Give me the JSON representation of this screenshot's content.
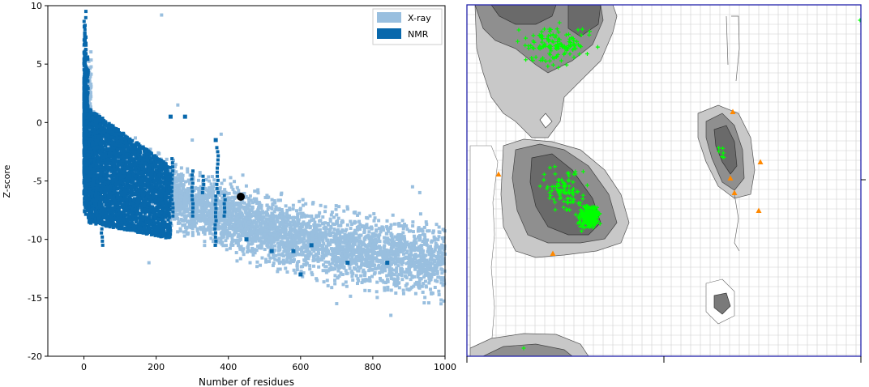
{
  "chart_data": [
    {
      "type": "scatter",
      "title": "",
      "xlabel": "Number of residues",
      "ylabel": "Z-score",
      "xlim": [
        -100,
        1000
      ],
      "ylim": [
        -20,
        10
      ],
      "x_ticks": [
        0,
        200,
        400,
        600,
        800,
        1000
      ],
      "y_ticks": [
        10,
        5,
        0,
        -5,
        -10,
        -15,
        -20
      ],
      "legend_position": "top-right",
      "grid": false,
      "series": [
        {
          "name": "X-ray",
          "color": "#99bfdf",
          "description_points": [
            [
              5,
              9.5
            ],
            [
              8,
              7
            ],
            [
              10,
              4
            ],
            [
              15,
              2
            ],
            [
              20,
              1
            ],
            [
              40,
              0.5
            ],
            [
              60,
              -1
            ],
            [
              100,
              -2
            ],
            [
              150,
              -1.5
            ],
            [
              200,
              -2
            ],
            [
              250,
              -3
            ],
            [
              300,
              -3.5
            ],
            [
              350,
              -4
            ],
            [
              400,
              -5
            ],
            [
              450,
              -6
            ],
            [
              500,
              -7
            ],
            [
              550,
              -8
            ],
            [
              600,
              -9
            ],
            [
              650,
              -9.5
            ],
            [
              700,
              -10
            ],
            [
              750,
              -10.5
            ],
            [
              800,
              -11
            ],
            [
              850,
              -11.5
            ],
            [
              900,
              -12
            ],
            [
              950,
              -12.5
            ],
            [
              1000,
              -12
            ],
            [
              150,
              -8
            ],
            [
              200,
              -10
            ],
            [
              250,
              -11
            ],
            [
              300,
              -12
            ],
            [
              350,
              -12
            ],
            [
              400,
              -13
            ],
            [
              450,
              -13.5
            ],
            [
              500,
              -13
            ],
            [
              550,
              -14
            ],
            [
              600,
              -14.5
            ],
            [
              700,
              -15
            ],
            [
              800,
              -15.5
            ],
            [
              850,
              -16.5
            ],
            [
              950,
              -14.5
            ],
            [
              1000,
              -14.5
            ],
            [
              910,
              -5.5
            ],
            [
              440,
              -4.5
            ],
            [
              215,
              9.2
            ],
            [
              300,
              -2
            ],
            [
              380,
              -1
            ],
            [
              260,
              1.5
            ]
          ]
        },
        {
          "name": "NMR",
          "color": "#0868ac",
          "description_points": [
            [
              2,
              9.8
            ],
            [
              3,
              8
            ],
            [
              4,
              6
            ],
            [
              5,
              4
            ],
            [
              6,
              2
            ],
            [
              8,
              1
            ],
            [
              10,
              0
            ],
            [
              15,
              -1
            ],
            [
              20,
              -2
            ],
            [
              40,
              -3
            ],
            [
              60,
              -4
            ],
            [
              80,
              -5
            ],
            [
              100,
              -6
            ],
            [
              120,
              -7
            ],
            [
              150,
              -7
            ],
            [
              180,
              -6
            ],
            [
              200,
              -5
            ],
            [
              230,
              -6
            ],
            [
              260,
              -5
            ],
            [
              300,
              -5
            ],
            [
              330,
              -5.5
            ],
            [
              360,
              -6.5
            ],
            [
              370,
              -9
            ],
            [
              380,
              -8
            ],
            [
              50,
              -10
            ],
            [
              80,
              -9
            ],
            [
              20,
              -9
            ],
            [
              40,
              2
            ],
            [
              90,
              0
            ],
            [
              140,
              -1
            ],
            [
              190,
              -2
            ],
            [
              250,
              0.5
            ],
            [
              310,
              -2
            ],
            [
              450,
              -10
            ],
            [
              520,
              -11
            ],
            [
              580,
              -11
            ],
            [
              630,
              -10.5
            ],
            [
              730,
              -12
            ],
            [
              840,
              -12
            ],
            [
              600,
              -13
            ]
          ]
        },
        {
          "name": "",
          "color": "#000000",
          "points": [
            [
              435,
              -6.3
            ]
          ]
        }
      ]
    },
    {
      "type": "scatter",
      "title": "",
      "xlabel": "",
      "ylabel": "",
      "grid": true,
      "background": "Ramachandran regions",
      "series": [
        {
          "name": "",
          "color": "#00ff00",
          "marker": "plus"
        },
        {
          "name": "",
          "color": "#ff8800",
          "marker": "triangle"
        }
      ]
    }
  ]
}
